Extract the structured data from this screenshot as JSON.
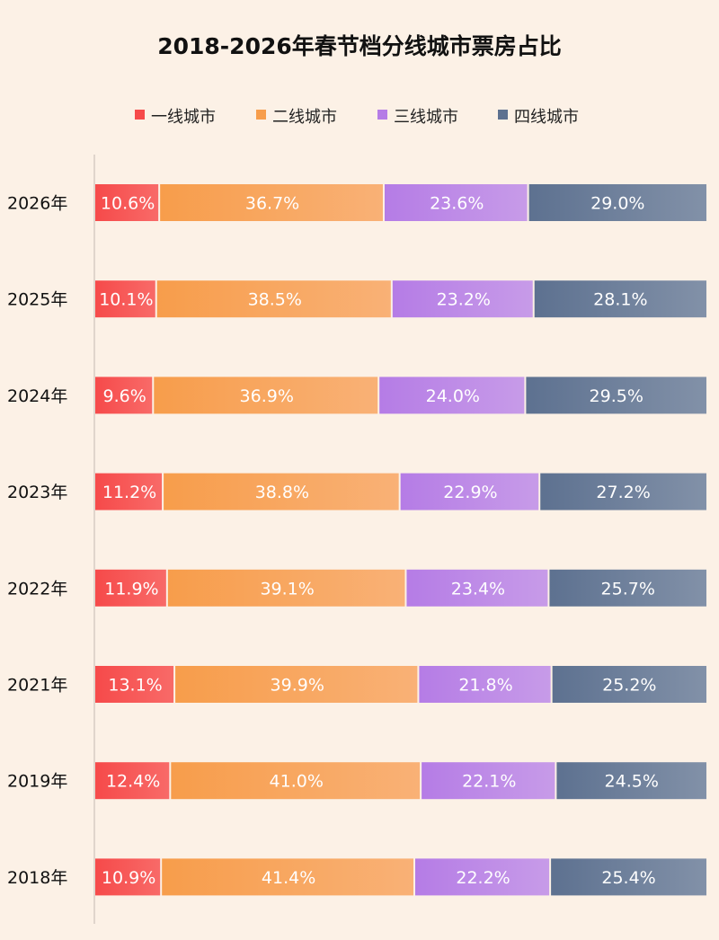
{
  "chart_data": {
    "type": "bar",
    "orientation": "horizontal",
    "stacked": "percent",
    "title": "2018-2026年春节档分线城市票房占比",
    "legend_position": "top",
    "categories": [
      "2026年",
      "2025年",
      "2024年",
      "2023年",
      "2022年",
      "2021年",
      "2019年",
      "2018年"
    ],
    "series": [
      {
        "name": "一线城市",
        "color": "#f64a4a",
        "color_end": "#f86a68",
        "values": [
          10.6,
          10.1,
          9.6,
          11.2,
          11.9,
          13.1,
          12.4,
          10.9
        ]
      },
      {
        "name": "二线城市",
        "color": "#f79d4b",
        "color_end": "#f9b176",
        "values": [
          36.7,
          38.5,
          36.9,
          38.8,
          39.1,
          39.9,
          41.0,
          41.4
        ]
      },
      {
        "name": "三线城市",
        "color": "#b57ce6",
        "color_end": "#c79be8",
        "values": [
          23.6,
          23.2,
          24.0,
          22.9,
          23.4,
          21.8,
          22.1,
          22.2
        ]
      },
      {
        "name": "四线城市",
        "color": "#5d7190",
        "color_end": "#8291a8",
        "values": [
          29.0,
          28.1,
          29.5,
          27.2,
          25.7,
          25.2,
          24.5,
          25.4
        ]
      }
    ],
    "value_suffix": "%",
    "grid": false
  }
}
